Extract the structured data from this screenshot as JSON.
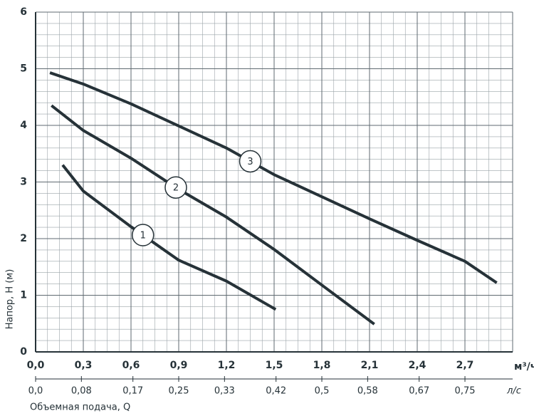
{
  "chart_data": {
    "type": "line",
    "x_label": "м³/ч",
    "x2_label": "л/с",
    "y_label": "Напор, H (м)",
    "x2_title": "Объемная подача, Q",
    "xlim": [
      0,
      3
    ],
    "ylim": [
      0,
      6
    ],
    "xticks": [
      {
        "value": 0,
        "label": "0,0"
      },
      {
        "value": 0.3,
        "label": "0,3"
      },
      {
        "value": 0.6,
        "label": "0,6"
      },
      {
        "value": 0.9,
        "label": "0,9"
      },
      {
        "value": 1.2,
        "label": "1,2"
      },
      {
        "value": 1.5,
        "label": "1,5"
      },
      {
        "value": 1.8,
        "label": "1,8"
      },
      {
        "value": 2.1,
        "label": "2,1"
      },
      {
        "value": 2.4,
        "label": "2,4"
      },
      {
        "value": 2.7,
        "label": "2,7"
      }
    ],
    "yticks": [
      0,
      1,
      2,
      3,
      4,
      5,
      6
    ],
    "x2lim": [
      0,
      0.8333
    ],
    "x2ticks": [
      {
        "value": 0,
        "label": "0,0"
      },
      {
        "value": 0.08,
        "label": "0,08"
      },
      {
        "value": 0.17,
        "label": "0,17"
      },
      {
        "value": 0.25,
        "label": "0,25"
      },
      {
        "value": 0.33,
        "label": "0,33"
      },
      {
        "value": 0.42,
        "label": "0,42"
      },
      {
        "value": 0.5,
        "label": "0,5"
      },
      {
        "value": 0.58,
        "label": "0,58"
      },
      {
        "value": 0.67,
        "label": "0,67"
      },
      {
        "value": 0.75,
        "label": "0,75"
      }
    ],
    "grid": true,
    "series": [
      {
        "name": "1",
        "color": "#263238",
        "x": [
          0.17,
          0.3,
          0.6,
          0.9,
          1.2,
          1.51
        ],
        "values": [
          3.3,
          2.84,
          2.21,
          1.62,
          1.25,
          0.75
        ]
      },
      {
        "name": "2",
        "color": "#263238",
        "x": [
          0.1,
          0.3,
          0.6,
          0.9,
          1.2,
          1.5,
          1.8,
          2.13
        ],
        "values": [
          4.35,
          3.91,
          3.42,
          2.87,
          2.38,
          1.81,
          1.18,
          0.49
        ]
      },
      {
        "name": "3",
        "color": "#263238",
        "x": [
          0.09,
          0.3,
          0.6,
          0.9,
          1.2,
          1.5,
          1.8,
          2.1,
          2.4,
          2.7,
          2.9
        ],
        "values": [
          4.93,
          4.73,
          4.38,
          3.99,
          3.6,
          3.13,
          2.74,
          2.35,
          1.97,
          1.6,
          1.22
        ]
      }
    ]
  }
}
